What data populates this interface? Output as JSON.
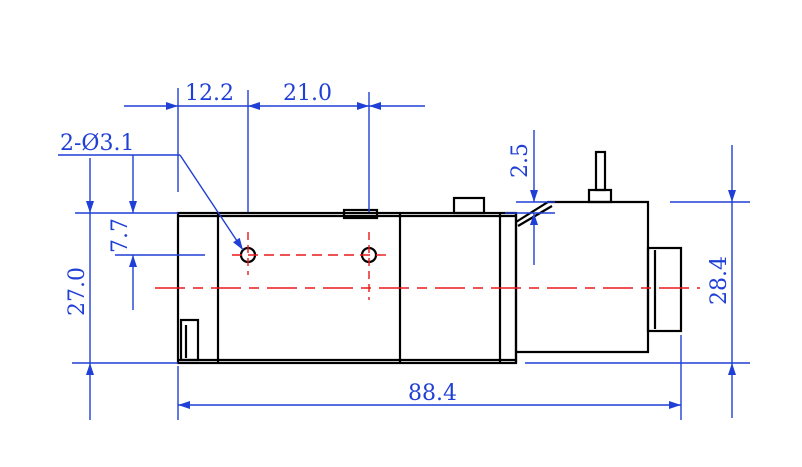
{
  "drawing": {
    "colors": {
      "dimension": "#1f3fd6",
      "centerline": "#e81919",
      "outline": "#000000",
      "background": "#ffffff"
    },
    "labels": {
      "hole_spacing_a": "12.2",
      "hole_spacing_b": "21.0",
      "hole_note": "2-Ø3.1",
      "top_offset": "2.5",
      "hole_height": "7.7",
      "body_height": "27.0",
      "overall_height": "28.4",
      "overall_length": "88.4"
    }
  }
}
